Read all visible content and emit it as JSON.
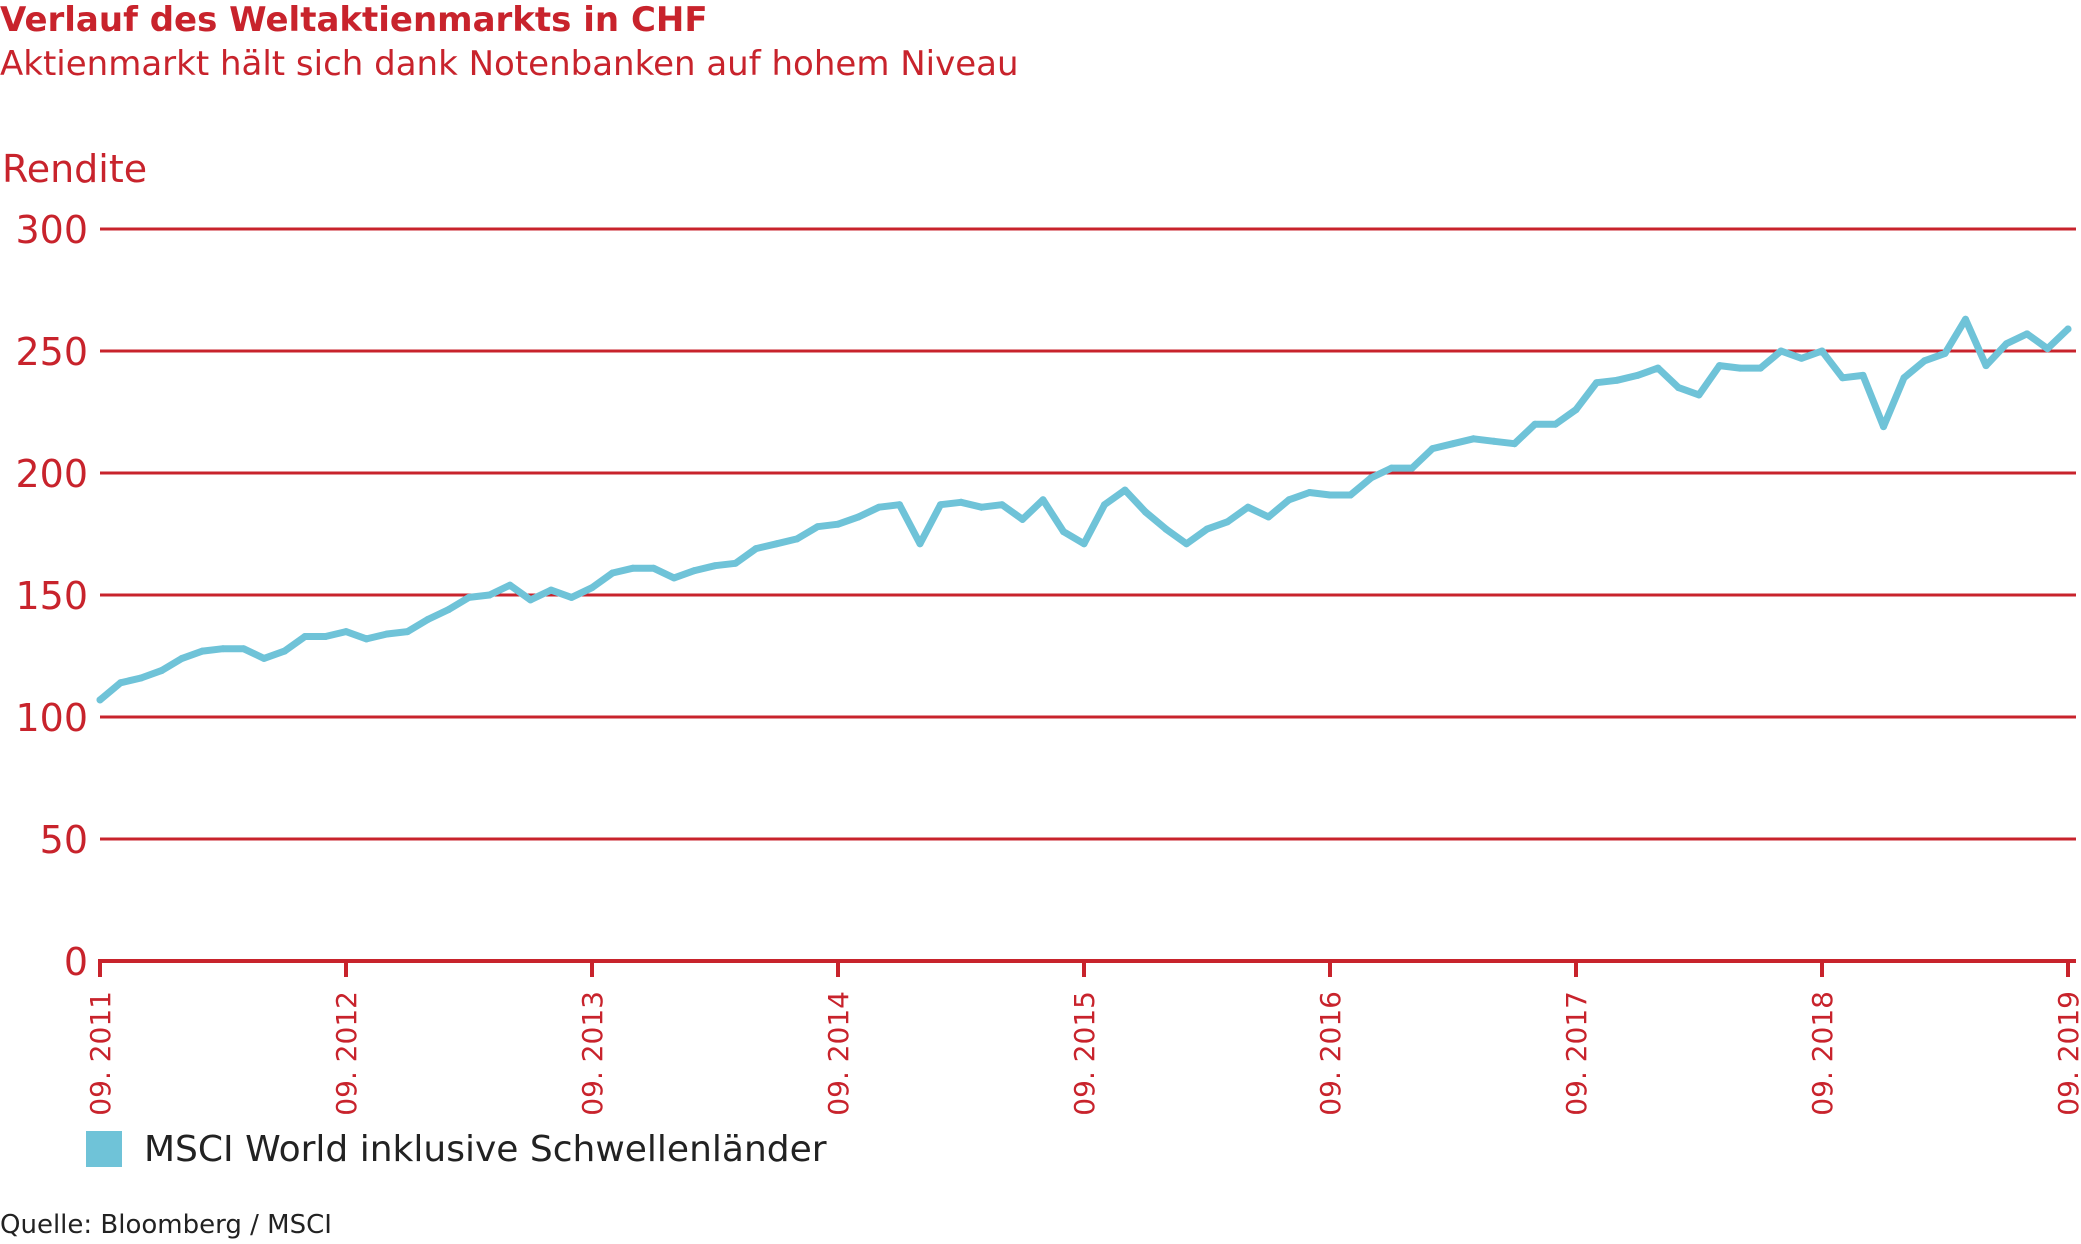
{
  "header": {
    "title": "Verlauf des Weltaktienmarkts in CHF",
    "subtitle": "Aktienmarkt hält sich dank Notenbanken auf hohem Niveau"
  },
  "footer": {
    "source": "Quelle: Bloomberg / MSCI"
  },
  "colors": {
    "accent": "#c8232c",
    "series": "#6fc3d8",
    "text": "#222222"
  },
  "chart_data": {
    "type": "line",
    "ylabel": "Rendite",
    "xlabel": "",
    "ylim": [
      0,
      300
    ],
    "yticks": [
      0,
      50,
      100,
      150,
      200,
      250,
      300
    ],
    "grid": true,
    "legend_position": "bottom-left",
    "x_range": [
      "2011-09",
      "2019-09"
    ],
    "xtick_labels": [
      "09. 2011",
      "09. 2012",
      "09. 2013",
      "09. 2014",
      "09. 2015",
      "09. 2016",
      "09. 2017",
      "09. 2018",
      "09. 2019"
    ],
    "series": [
      {
        "name": "MSCI World inklusive Schwellenländer",
        "color": "#6fc3d8",
        "points": [
          [
            "2011-09",
            107
          ],
          [
            "2011-10",
            114
          ],
          [
            "2011-11",
            116
          ],
          [
            "2011-12",
            119
          ],
          [
            "2012-01",
            124
          ],
          [
            "2012-02",
            127
          ],
          [
            "2012-03",
            128
          ],
          [
            "2012-04",
            128
          ],
          [
            "2012-05",
            124
          ],
          [
            "2012-06",
            127
          ],
          [
            "2012-07",
            133
          ],
          [
            "2012-08",
            133
          ],
          [
            "2012-09",
            135
          ],
          [
            "2012-10",
            132
          ],
          [
            "2012-11",
            134
          ],
          [
            "2012-12",
            135
          ],
          [
            "2013-01",
            140
          ],
          [
            "2013-02",
            144
          ],
          [
            "2013-03",
            149
          ],
          [
            "2013-04",
            150
          ],
          [
            "2013-05",
            154
          ],
          [
            "2013-06",
            148
          ],
          [
            "2013-07",
            152
          ],
          [
            "2013-08",
            149
          ],
          [
            "2013-09",
            153
          ],
          [
            "2013-10",
            159
          ],
          [
            "2013-11",
            161
          ],
          [
            "2013-12",
            161
          ],
          [
            "2014-01",
            157
          ],
          [
            "2014-02",
            160
          ],
          [
            "2014-03",
            162
          ],
          [
            "2014-04",
            163
          ],
          [
            "2014-05",
            169
          ],
          [
            "2014-06",
            171
          ],
          [
            "2014-07",
            173
          ],
          [
            "2014-08",
            178
          ],
          [
            "2014-09",
            179
          ],
          [
            "2014-10",
            182
          ],
          [
            "2014-11",
            186
          ],
          [
            "2014-12",
            187
          ],
          [
            "2015-01",
            171
          ],
          [
            "2015-02",
            187
          ],
          [
            "2015-03",
            188
          ],
          [
            "2015-04",
            186
          ],
          [
            "2015-05",
            187
          ],
          [
            "2015-06",
            181
          ],
          [
            "2015-07",
            189
          ],
          [
            "2015-08",
            176
          ],
          [
            "2015-09",
            171
          ],
          [
            "2015-10",
            187
          ],
          [
            "2015-11",
            193
          ],
          [
            "2015-12",
            184
          ],
          [
            "2016-01",
            177
          ],
          [
            "2016-02",
            171
          ],
          [
            "2016-03",
            177
          ],
          [
            "2016-04",
            180
          ],
          [
            "2016-05",
            186
          ],
          [
            "2016-06",
            182
          ],
          [
            "2016-07",
            189
          ],
          [
            "2016-08",
            192
          ],
          [
            "2016-09",
            191
          ],
          [
            "2016-10",
            191
          ],
          [
            "2016-11",
            198
          ],
          [
            "2016-12",
            202
          ],
          [
            "2017-01",
            202
          ],
          [
            "2017-02",
            210
          ],
          [
            "2017-03",
            212
          ],
          [
            "2017-04",
            214
          ],
          [
            "2017-05",
            213
          ],
          [
            "2017-06",
            212
          ],
          [
            "2017-07",
            220
          ],
          [
            "2017-08",
            220
          ],
          [
            "2017-09",
            226
          ],
          [
            "2017-10",
            237
          ],
          [
            "2017-11",
            238
          ],
          [
            "2017-12",
            240
          ],
          [
            "2018-01",
            243
          ],
          [
            "2018-02",
            235
          ],
          [
            "2018-03",
            232
          ],
          [
            "2018-04",
            244
          ],
          [
            "2018-05",
            243
          ],
          [
            "2018-06",
            243
          ],
          [
            "2018-07",
            250
          ],
          [
            "2018-08",
            247
          ],
          [
            "2018-09",
            250
          ],
          [
            "2018-10",
            239
          ],
          [
            "2018-11",
            240
          ],
          [
            "2018-12",
            219
          ],
          [
            "2019-01",
            239
          ],
          [
            "2019-02",
            246
          ],
          [
            "2019-03",
            249
          ],
          [
            "2019-04",
            263
          ],
          [
            "2019-05",
            244
          ],
          [
            "2019-06",
            253
          ],
          [
            "2019-07",
            257
          ],
          [
            "2019-08",
            251
          ],
          [
            "2019-09",
            259
          ]
        ]
      }
    ]
  }
}
